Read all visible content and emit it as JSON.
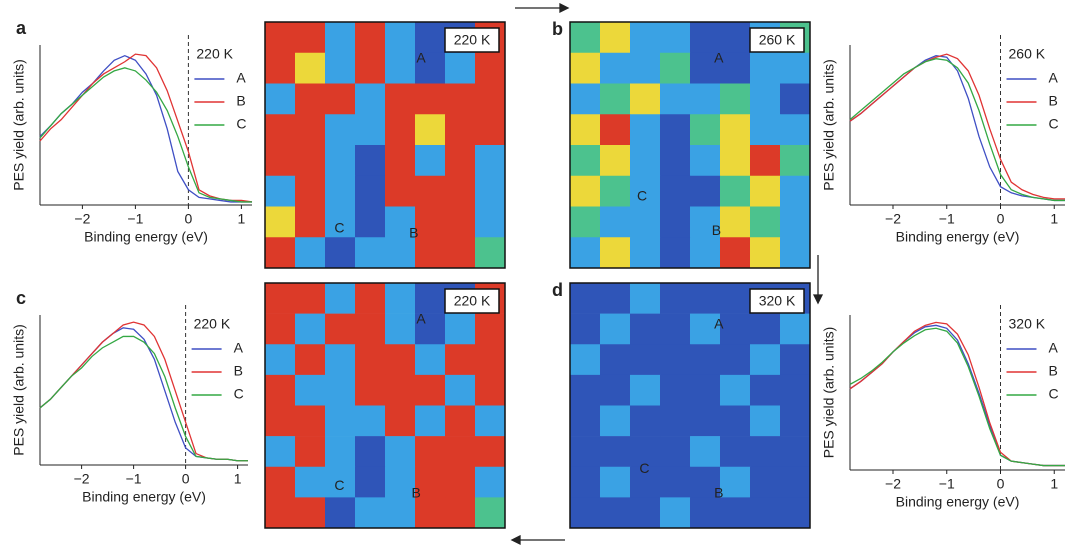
{
  "chart_data": [
    {
      "type": "line",
      "panel": "a",
      "xlabel": "Binding energy (eV)",
      "ylabel": "PES yield (arb. units)",
      "legend_title": "220 K",
      "xlim": [
        -2.8,
        1.2
      ],
      "ylim": [
        0,
        1.05
      ],
      "xticks": [
        {
          "value": -2,
          "label": "−2"
        },
        {
          "value": -1,
          "label": "−1"
        },
        0,
        1
      ],
      "vline": 0,
      "x": [
        -2.8,
        -2.6,
        -2.4,
        -2.2,
        -2.0,
        -1.8,
        -1.6,
        -1.4,
        -1.2,
        -1.0,
        -0.8,
        -0.6,
        -0.4,
        -0.2,
        0,
        0.2,
        0.4,
        0.6,
        0.8,
        1.0,
        1.2
      ],
      "series": [
        {
          "name": "A",
          "color": "#3f4fc4",
          "values": [
            0.45,
            0.52,
            0.6,
            0.66,
            0.74,
            0.8,
            0.88,
            0.95,
            0.98,
            0.95,
            0.86,
            0.72,
            0.5,
            0.22,
            0.1,
            0.05,
            0.04,
            0.03,
            0.02,
            0.02,
            0.02
          ]
        },
        {
          "name": "B",
          "color": "#e03434",
          "values": [
            0.42,
            0.5,
            0.56,
            0.64,
            0.72,
            0.8,
            0.86,
            0.9,
            0.94,
            0.99,
            0.98,
            0.9,
            0.75,
            0.55,
            0.35,
            0.1,
            0.06,
            0.04,
            0.03,
            0.03,
            0.02
          ]
        },
        {
          "name": "C",
          "color": "#34a844",
          "values": [
            0.44,
            0.52,
            0.6,
            0.66,
            0.72,
            0.78,
            0.84,
            0.88,
            0.9,
            0.88,
            0.82,
            0.74,
            0.62,
            0.45,
            0.25,
            0.08,
            0.05,
            0.04,
            0.03,
            0.02,
            0.02
          ]
        }
      ]
    },
    {
      "type": "heatmap",
      "temperature": "220 K",
      "annotations": [
        "A",
        "B",
        "C"
      ],
      "colorscale": [
        "#2f55b8",
        "#3aa2e4",
        "#4cc28e",
        "#ecd83a",
        "#dc3a28"
      ],
      "z": [
        [
          4,
          4,
          1,
          4,
          1,
          0,
          0,
          4
        ],
        [
          4,
          3,
          1,
          4,
          1,
          0,
          1,
          4
        ],
        [
          1,
          4,
          4,
          1,
          4,
          4,
          4,
          4
        ],
        [
          4,
          4,
          1,
          1,
          4,
          3,
          4,
          4
        ],
        [
          4,
          4,
          1,
          0,
          4,
          1,
          4,
          1
        ],
        [
          1,
          4,
          1,
          0,
          4,
          4,
          4,
          1
        ],
        [
          3,
          4,
          1,
          0,
          1,
          4,
          4,
          1
        ],
        [
          4,
          1,
          0,
          1,
          1,
          4,
          4,
          2
        ]
      ]
    },
    {
      "type": "heatmap",
      "panel": "b",
      "temperature": "260 K",
      "annotations": [
        "A",
        "B",
        "C"
      ],
      "colorscale": [
        "#2f55b8",
        "#3aa2e4",
        "#4cc28e",
        "#ecd83a",
        "#dc3a28"
      ],
      "z": [
        [
          2,
          3,
          1,
          1,
          0,
          0,
          1,
          2
        ],
        [
          3,
          1,
          1,
          2,
          0,
          0,
          1,
          1
        ],
        [
          1,
          2,
          3,
          1,
          1,
          2,
          1,
          0
        ],
        [
          3,
          4,
          1,
          0,
          2,
          3,
          1,
          1
        ],
        [
          2,
          3,
          1,
          0,
          1,
          3,
          4,
          2
        ],
        [
          3,
          2,
          1,
          0,
          0,
          2,
          3,
          1
        ],
        [
          2,
          1,
          1,
          0,
          1,
          3,
          2,
          1
        ],
        [
          1,
          3,
          1,
          0,
          1,
          4,
          3,
          1
        ]
      ]
    },
    {
      "type": "line",
      "xlabel": "Binding energy (eV)",
      "ylabel": "PES yield (arb. units)",
      "legend_title": "260 K",
      "xlim": [
        -2.8,
        1.2
      ],
      "ylim": [
        0,
        1.05
      ],
      "xticks": [
        {
          "value": -2,
          "label": "−2"
        },
        {
          "value": -1,
          "label": "−1"
        },
        0,
        1
      ],
      "vline": 0,
      "x": [
        -2.8,
        -2.6,
        -2.4,
        -2.2,
        -2.0,
        -1.8,
        -1.6,
        -1.4,
        -1.2,
        -1.0,
        -0.8,
        -0.6,
        -0.4,
        -0.2,
        0,
        0.2,
        0.4,
        0.6,
        0.8,
        1.0,
        1.2
      ],
      "series": [
        {
          "name": "A",
          "color": "#3f4fc4",
          "values": [
            0.55,
            0.6,
            0.66,
            0.72,
            0.78,
            0.84,
            0.9,
            0.95,
            0.98,
            0.97,
            0.88,
            0.7,
            0.45,
            0.25,
            0.12,
            0.08,
            0.06,
            0.05,
            0.04,
            0.03,
            0.03
          ]
        },
        {
          "name": "B",
          "color": "#e03434",
          "values": [
            0.55,
            0.6,
            0.66,
            0.72,
            0.78,
            0.84,
            0.9,
            0.94,
            0.97,
            0.99,
            0.96,
            0.88,
            0.72,
            0.5,
            0.3,
            0.15,
            0.1,
            0.07,
            0.05,
            0.04,
            0.04
          ]
        },
        {
          "name": "C",
          "color": "#34a844",
          "values": [
            0.56,
            0.62,
            0.68,
            0.74,
            0.8,
            0.86,
            0.9,
            0.94,
            0.96,
            0.95,
            0.9,
            0.8,
            0.62,
            0.4,
            0.2,
            0.1,
            0.07,
            0.05,
            0.04,
            0.03,
            0.03
          ]
        }
      ]
    },
    {
      "type": "line",
      "panel": "c",
      "xlabel": "Binding energy (eV)",
      "ylabel": "PES yield (arb. units)",
      "legend_title": "220 K",
      "xlim": [
        -2.8,
        1.2
      ],
      "ylim": [
        0,
        1.05
      ],
      "xticks": [
        {
          "value": -2,
          "label": "−2"
        },
        {
          "value": -1,
          "label": "−1"
        },
        0,
        1
      ],
      "vline": 0,
      "x": [
        -2.8,
        -2.6,
        -2.4,
        -2.2,
        -2.0,
        -1.8,
        -1.6,
        -1.4,
        -1.2,
        -1.0,
        -0.8,
        -0.6,
        -0.4,
        -0.2,
        0,
        0.2,
        0.4,
        0.6,
        0.8,
        1.0,
        1.2
      ],
      "series": [
        {
          "name": "A",
          "color": "#3f4fc4",
          "values": [
            0.4,
            0.46,
            0.54,
            0.62,
            0.7,
            0.78,
            0.86,
            0.92,
            0.96,
            0.95,
            0.88,
            0.74,
            0.52,
            0.3,
            0.12,
            0.06,
            0.05,
            0.04,
            0.04,
            0.03,
            0.03
          ]
        },
        {
          "name": "B",
          "color": "#e03434",
          "values": [
            0.4,
            0.46,
            0.54,
            0.62,
            0.7,
            0.78,
            0.86,
            0.92,
            0.98,
            1.0,
            0.98,
            0.9,
            0.74,
            0.52,
            0.3,
            0.08,
            0.05,
            0.04,
            0.04,
            0.03,
            0.03
          ]
        },
        {
          "name": "C",
          "color": "#34a844",
          "values": [
            0.4,
            0.46,
            0.54,
            0.62,
            0.68,
            0.76,
            0.82,
            0.86,
            0.9,
            0.9,
            0.86,
            0.78,
            0.62,
            0.4,
            0.2,
            0.06,
            0.05,
            0.04,
            0.04,
            0.03,
            0.03
          ]
        }
      ]
    },
    {
      "type": "heatmap",
      "temperature": "220 K",
      "annotations": [
        "A",
        "B",
        "C"
      ],
      "colorscale": [
        "#2f55b8",
        "#3aa2e4",
        "#4cc28e",
        "#ecd83a",
        "#dc3a28"
      ],
      "z": [
        [
          4,
          4,
          1,
          4,
          1,
          0,
          0,
          4
        ],
        [
          4,
          1,
          4,
          4,
          1,
          0,
          1,
          4
        ],
        [
          1,
          4,
          1,
          4,
          4,
          1,
          4,
          4
        ],
        [
          4,
          1,
          1,
          4,
          4,
          4,
          1,
          4
        ],
        [
          4,
          4,
          1,
          1,
          4,
          1,
          4,
          1
        ],
        [
          1,
          4,
          1,
          0,
          1,
          4,
          4,
          4
        ],
        [
          4,
          1,
          1,
          0,
          1,
          4,
          4,
          1
        ],
        [
          4,
          4,
          0,
          1,
          1,
          4,
          4,
          2
        ]
      ]
    },
    {
      "type": "heatmap",
      "panel": "d",
      "temperature": "320 K",
      "annotations": [
        "A",
        "B",
        "C"
      ],
      "colorscale": [
        "#2f55b8",
        "#3aa2e4",
        "#4cc28e",
        "#ecd83a",
        "#dc3a28"
      ],
      "z": [
        [
          0,
          0,
          1,
          0,
          0,
          0,
          0,
          0
        ],
        [
          0,
          1,
          0,
          0,
          1,
          0,
          0,
          1
        ],
        [
          1,
          0,
          0,
          0,
          0,
          0,
          1,
          0
        ],
        [
          0,
          0,
          1,
          0,
          0,
          1,
          0,
          0
        ],
        [
          0,
          1,
          0,
          0,
          0,
          0,
          1,
          0
        ],
        [
          0,
          0,
          0,
          0,
          1,
          0,
          0,
          0
        ],
        [
          0,
          1,
          0,
          0,
          0,
          1,
          0,
          0
        ],
        [
          0,
          0,
          0,
          1,
          0,
          0,
          0,
          0
        ]
      ]
    },
    {
      "type": "line",
      "xlabel": "Binding energy (eV)",
      "ylabel": "PES yield (arb. units)",
      "legend_title": "320 K",
      "xlim": [
        -2.8,
        1.2
      ],
      "ylim": [
        0,
        1.05
      ],
      "xticks": [
        {
          "value": -2,
          "label": "−2"
        },
        {
          "value": -1,
          "label": "−1"
        },
        0,
        1
      ],
      "vline": 0,
      "x": [
        -2.8,
        -2.6,
        -2.4,
        -2.2,
        -2.0,
        -1.8,
        -1.6,
        -1.4,
        -1.2,
        -1.0,
        -0.8,
        -0.6,
        -0.4,
        -0.2,
        0,
        0.2,
        0.4,
        0.6,
        0.8,
        1.0,
        1.2
      ],
      "series": [
        {
          "name": "A",
          "color": "#3f4fc4",
          "values": [
            0.55,
            0.6,
            0.66,
            0.72,
            0.8,
            0.87,
            0.93,
            0.97,
            0.98,
            0.96,
            0.88,
            0.72,
            0.52,
            0.3,
            0.1,
            0.06,
            0.05,
            0.04,
            0.03,
            0.03,
            0.03
          ]
        },
        {
          "name": "B",
          "color": "#e03434",
          "values": [
            0.55,
            0.6,
            0.66,
            0.72,
            0.8,
            0.87,
            0.94,
            0.98,
            1.0,
            0.99,
            0.92,
            0.78,
            0.56,
            0.32,
            0.12,
            0.06,
            0.05,
            0.04,
            0.03,
            0.03,
            0.03
          ]
        },
        {
          "name": "C",
          "color": "#34a844",
          "values": [
            0.58,
            0.62,
            0.67,
            0.73,
            0.8,
            0.86,
            0.91,
            0.95,
            0.96,
            0.94,
            0.86,
            0.7,
            0.5,
            0.28,
            0.1,
            0.06,
            0.05,
            0.04,
            0.03,
            0.03,
            0.03
          ]
        }
      ]
    }
  ]
}
